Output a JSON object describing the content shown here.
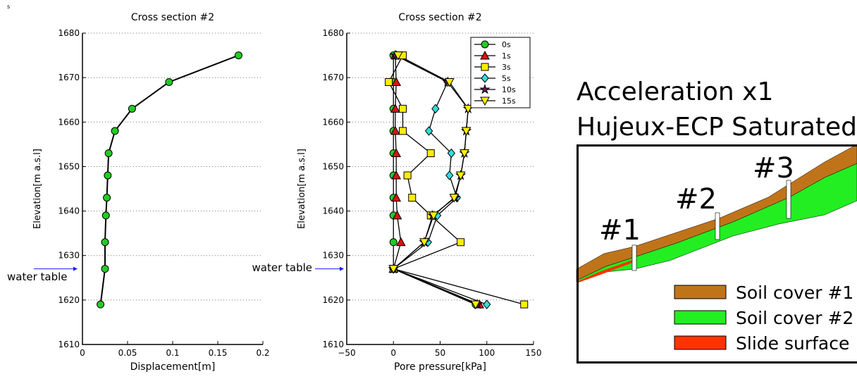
{
  "corner_label": "s",
  "chart_data": [
    {
      "type": "line",
      "title": "Cross section #2",
      "x_label": "Displacement[m]",
      "y_label": "Elevation[m a.s.l]",
      "x": [
        0.173,
        0.096,
        0.055,
        0.036,
        0.029,
        0.028,
        0.027,
        0.026,
        0.025,
        0.025,
        0.02
      ],
      "y": [
        1675,
        1669,
        1663,
        1658,
        1653,
        1648,
        1643,
        1639,
        1633,
        1627,
        1619
      ],
      "color": "#22cc22",
      "marker": "circle",
      "xlim": [
        0,
        0.2
      ],
      "xticks": [
        0,
        0.05,
        0.1,
        0.15,
        0.2
      ],
      "ylim": [
        1610,
        1680
      ],
      "yticks": [
        1610,
        1620,
        1630,
        1640,
        1650,
        1660,
        1670,
        1680
      ],
      "grid": true,
      "annotation": {
        "text": "water table",
        "y": 1627
      }
    },
    {
      "type": "line",
      "title": "Cross section #2",
      "x_label": "Pore pressure[kPa]",
      "y_label": "Elevation[m a.s.l]",
      "y": [
        1675,
        1669,
        1663,
        1658,
        1653,
        1648,
        1643,
        1639,
        1633,
        1627,
        1619
      ],
      "series": [
        {
          "name": "0s",
          "color": "#22cc22",
          "marker": "circle",
          "x": [
            0,
            0,
            0,
            0,
            0,
            0,
            0,
            0,
            0,
            0,
            88
          ]
        },
        {
          "name": "1s",
          "color": "#dd1111",
          "marker": "triangle-up",
          "x": [
            2,
            3,
            2,
            2,
            3,
            3,
            3,
            4,
            8,
            0,
            92
          ]
        },
        {
          "name": "3s",
          "color": "#ffee00",
          "marker": "square",
          "x": [
            10,
            -5,
            10,
            10,
            40,
            15,
            20,
            40,
            72,
            0,
            140
          ]
        },
        {
          "name": "5s",
          "color": "#33dddd",
          "marker": "diamond",
          "x": [
            3,
            58,
            45,
            38,
            62,
            60,
            68,
            47,
            37,
            0,
            100
          ]
        },
        {
          "name": "10s",
          "color": "#6a1a5a",
          "marker": "star",
          "x": [
            2,
            58,
            80,
            78,
            76,
            72,
            66,
            42,
            33,
            0,
            90
          ]
        },
        {
          "name": "15s",
          "color": "#ffee00",
          "marker": "triangle-down",
          "x": [
            5,
            60,
            80,
            78,
            76,
            72,
            65,
            43,
            33,
            0,
            88
          ]
        }
      ],
      "xlim": [
        -50,
        150
      ],
      "xticks": [
        {
          "value": -50,
          "label": "−50"
        },
        0,
        50,
        100,
        150
      ],
      "ylim": [
        1610,
        1680
      ],
      "yticks": [
        1610,
        1620,
        1630,
        1640,
        1650,
        1660,
        1670,
        1680
      ],
      "grid": true,
      "legend": "upper right",
      "annotation": {
        "text": "water table",
        "y": 1627
      }
    }
  ],
  "diagram": {
    "title": [
      "Acceleration x1",
      "Hujeux-ECP Saturated"
    ],
    "sections": [
      "#1",
      "#2",
      "#3"
    ],
    "legend": [
      "Soil cover #1",
      "Soil cover #2",
      "Slide surface"
    ]
  }
}
